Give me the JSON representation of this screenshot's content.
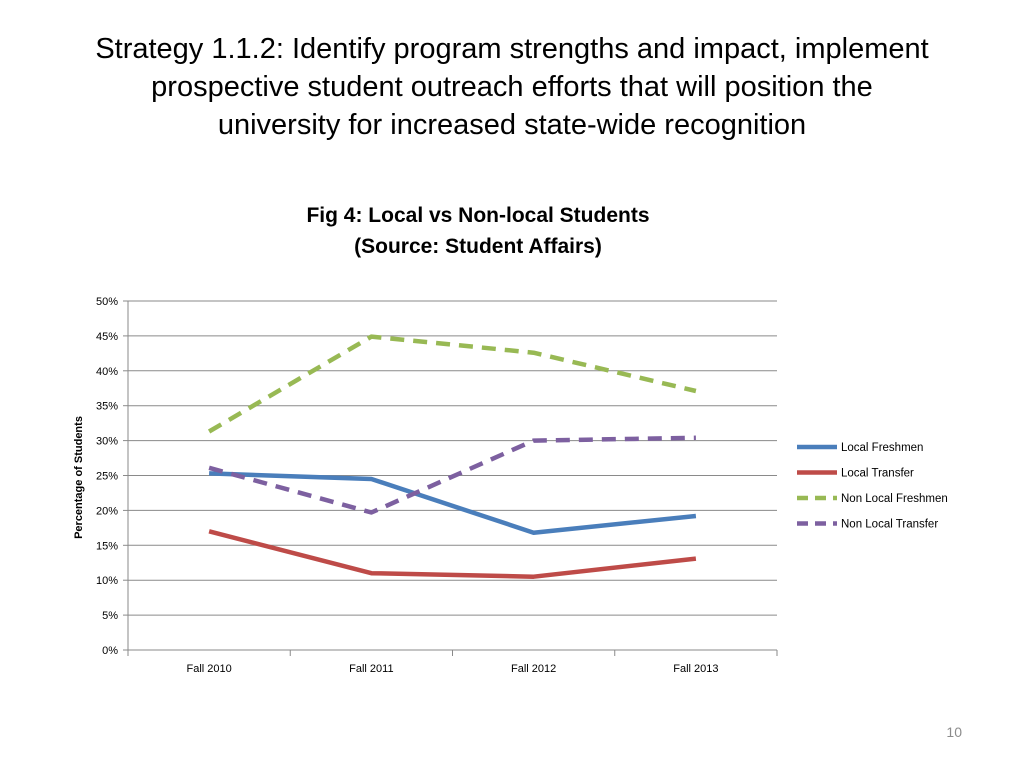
{
  "slide": {
    "title_lines": [
      "Strategy 1.1.2: Identify program strengths and impact, implement",
      "prospective student outreach efforts that will position the",
      "university for increased state-wide recognition"
    ],
    "page_number": "10"
  },
  "chart_data": {
    "type": "line",
    "title_lines": [
      "Fig 4: Local vs Non-local Students",
      "(Source: Student Affairs)"
    ],
    "xlabel": "",
    "ylabel": "Percentage of Students",
    "categories": [
      "Fall 2010",
      "Fall 2011",
      "Fall 2012",
      "Fall 2013"
    ],
    "y_ticks": [
      "0%",
      "5%",
      "10%",
      "15%",
      "20%",
      "25%",
      "30%",
      "35%",
      "40%",
      "45%",
      "50%"
    ],
    "ylim": [
      0,
      50
    ],
    "grid": true,
    "legend_position": "right",
    "series": [
      {
        "name": "Local Freshmen",
        "color": "#4a7ebb",
        "style": "solid",
        "values": [
          25.3,
          24.5,
          16.8,
          19.2
        ]
      },
      {
        "name": "Local Transfer",
        "color": "#be4b48",
        "style": "solid",
        "values": [
          17.0,
          11.0,
          10.5,
          13.1
        ]
      },
      {
        "name": "Non Local Freshmen",
        "color": "#98b954",
        "style": "dashed",
        "values": [
          31.3,
          44.9,
          42.6,
          37.1
        ]
      },
      {
        "name": "Non Local Transfer",
        "color": "#7d60a0",
        "style": "dashed",
        "values": [
          26.1,
          19.7,
          30.0,
          30.4
        ]
      }
    ]
  }
}
